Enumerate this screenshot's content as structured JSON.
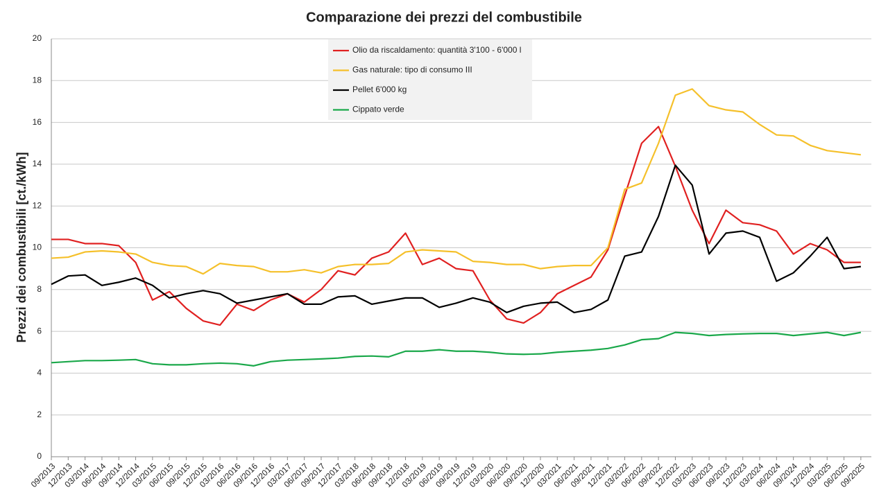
{
  "chart_data": {
    "type": "line",
    "title": "Comparazione dei prezzi del combustibile",
    "y_label": "Prezzi dei combustibili [ct./kWh]",
    "categories": [
      "09/2013",
      "12/2013",
      "03/2014",
      "06/2014",
      "09/2014",
      "12/2014",
      "03/2015",
      "06/2015",
      "09/2015",
      "12/2015",
      "03/2016",
      "06/2016",
      "09/2016",
      "12/2016",
      "03/2017",
      "06/2017",
      "09/2017",
      "12/2017",
      "03/2018",
      "06/2018",
      "09/2018",
      "12/2018",
      "03/2019",
      "06/2019",
      "09/2019",
      "12/2019",
      "03/2020",
      "06/2020",
      "09/2020",
      "12/2020",
      "03/2021",
      "06/2021",
      "09/2021",
      "12/2021",
      "03/2022",
      "06/2022",
      "09/2022",
      "12/2022",
      "03/2023",
      "06/2023",
      "09/2023",
      "12/2023",
      "03/2024",
      "06/2024",
      "09/2024",
      "12/2024",
      "03/2025",
      "06/2025",
      "09/2025"
    ],
    "series": [
      {
        "name": "Olio da riscaldamento: quantità 3'100 - 6'000 l",
        "color": "#e02020",
        "values": [
          10.4,
          10.4,
          10.2,
          10.2,
          10.1,
          9.3,
          7.5,
          7.9,
          7.1,
          6.5,
          6.3,
          7.3,
          7.0,
          7.5,
          7.8,
          7.4,
          8.0,
          8.9,
          8.7,
          9.5,
          9.8,
          10.7,
          9.2,
          9.5,
          9.0,
          8.9,
          7.5,
          6.6,
          6.4,
          6.9,
          7.8,
          8.2,
          8.6,
          9.9,
          12.5,
          15.0,
          15.8,
          13.9,
          11.8,
          10.2,
          11.8,
          11.2,
          11.1,
          10.8,
          9.7,
          10.2,
          9.9,
          9.3,
          9.3
        ]
      },
      {
        "name": "Gas naturale: tipo di consumo III",
        "color": "#f5c02a",
        "values": [
          9.5,
          9.55,
          9.8,
          9.85,
          9.8,
          9.7,
          9.3,
          9.15,
          9.1,
          8.75,
          9.25,
          9.15,
          9.1,
          8.85,
          8.85,
          8.95,
          8.8,
          9.1,
          9.2,
          9.2,
          9.25,
          9.8,
          9.9,
          9.85,
          9.8,
          9.35,
          9.3,
          9.2,
          9.2,
          9.0,
          9.1,
          9.15,
          9.15,
          10.0,
          12.8,
          13.1,
          15.0,
          17.3,
          17.6,
          16.8,
          16.6,
          16.5,
          15.9,
          15.4,
          15.35,
          14.9,
          14.65,
          14.55,
          14.45
        ]
      },
      {
        "name": "Pellet 6'000 kg",
        "color": "#000000",
        "values": [
          8.25,
          8.65,
          8.7,
          8.2,
          8.35,
          8.55,
          8.2,
          7.6,
          7.8,
          7.95,
          7.8,
          7.35,
          7.5,
          7.65,
          7.8,
          7.3,
          7.3,
          7.65,
          7.7,
          7.3,
          7.45,
          7.6,
          7.6,
          7.15,
          7.35,
          7.6,
          7.4,
          6.9,
          7.2,
          7.35,
          7.4,
          6.9,
          7.05,
          7.5,
          9.6,
          9.8,
          11.5,
          13.95,
          13.0,
          9.7,
          10.7,
          10.8,
          10.5,
          8.4,
          8.8,
          9.6,
          10.5,
          9.0,
          9.1
        ]
      },
      {
        "name": "Cippato verde",
        "color": "#1aa84a",
        "values": [
          4.5,
          4.55,
          4.6,
          4.6,
          4.62,
          4.65,
          4.45,
          4.4,
          4.4,
          4.45,
          4.48,
          4.45,
          4.35,
          4.55,
          4.62,
          4.65,
          4.68,
          4.72,
          4.8,
          4.82,
          4.78,
          5.05,
          5.05,
          5.12,
          5.05,
          5.05,
          5.0,
          4.92,
          4.9,
          4.92,
          5.0,
          5.05,
          5.1,
          5.18,
          5.35,
          5.6,
          5.65,
          5.95,
          5.9,
          5.8,
          5.85,
          5.88,
          5.9,
          5.9,
          5.8,
          5.88,
          5.95,
          5.8,
          5.95
        ]
      }
    ],
    "ylim": [
      0,
      20
    ],
    "yticks": [
      0,
      2,
      4,
      6,
      8,
      10,
      12,
      14,
      16,
      18,
      20
    ],
    "grid": true,
    "legend": "top"
  }
}
